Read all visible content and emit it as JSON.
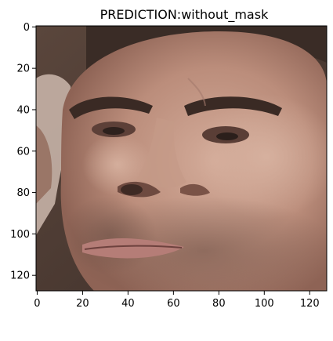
{
  "chart_data": {
    "type": "image",
    "title": "PREDICTION:without_mask",
    "xlabel": "",
    "ylabel": "",
    "xlim": [
      -0.5,
      127.5
    ],
    "ylim": [
      127.5,
      -0.5
    ],
    "x_ticks": [
      0,
      20,
      40,
      60,
      80,
      100,
      120
    ],
    "y_ticks": [
      0,
      20,
      40,
      60,
      80,
      100,
      120
    ],
    "grid": false,
    "image_content": "close-up photo of a man's face",
    "colors": {
      "skin_light": "#cfa897",
      "skin_mid": "#b98b7a",
      "skin_shadow": "#8a5f52",
      "background_dark": "#4a3a32",
      "hair": "#2e2420",
      "stubble": "#6e5248",
      "lips": "#b07a74"
    }
  }
}
